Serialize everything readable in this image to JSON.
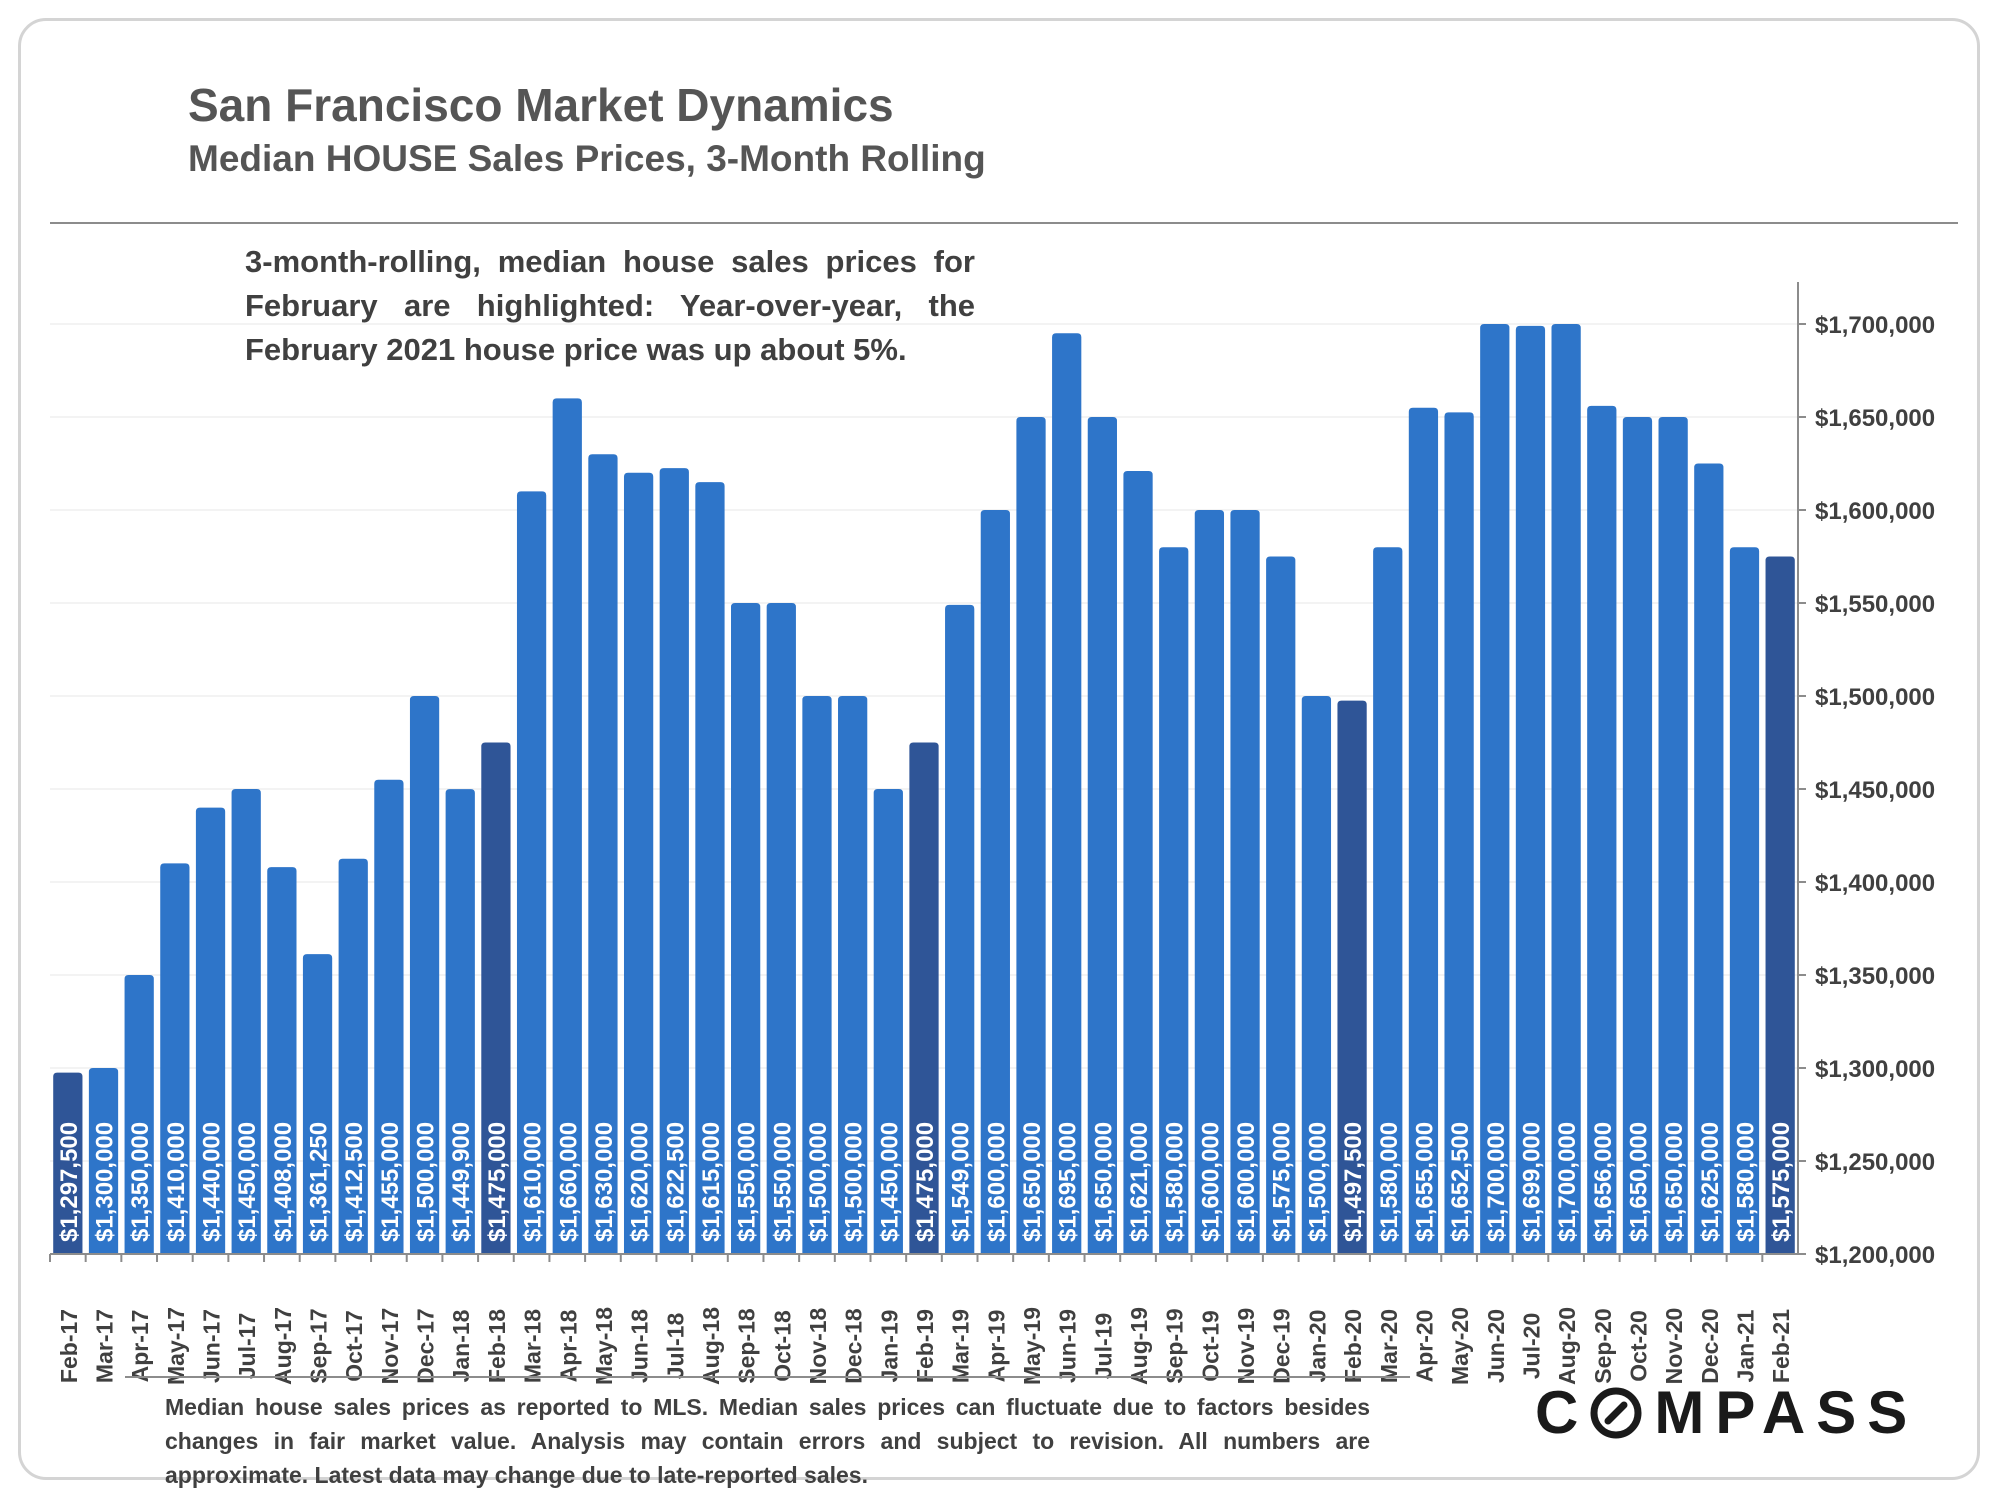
{
  "header": {
    "title": "San Francisco Market Dynamics",
    "subtitle": "Median HOUSE Sales Prices, 3-Month Rolling"
  },
  "annotation": "3-month-rolling, median house sales prices for February are highlighted: Year-over-year, the February 2021 house price was up about 5%.",
  "footnote": "Median house sales prices as reported to MLS. Median sales prices can fluctuate due to factors besides changes in fair market value. Analysis may contain errors and subject to revision. All numbers are approximate. Latest data may change due to late-reported sales.",
  "logo": {
    "text": "COMPASS",
    "letters_before_o": "C",
    "letters_after_o": "MPASS"
  },
  "colors": {
    "bar": "#2e75c9",
    "bar_highlight": "#2f5597",
    "label": "#ffffff",
    "axis_text": "#404040"
  },
  "chart_data": {
    "type": "bar",
    "categories": [
      "Feb-17",
      "Mar-17",
      "Apr-17",
      "May-17",
      "Jun-17",
      "Jul-17",
      "Aug-17",
      "Sep-17",
      "Oct-17",
      "Nov-17",
      "Dec-17",
      "Jan-18",
      "Feb-18",
      "Mar-18",
      "Apr-18",
      "May-18",
      "Jun-18",
      "Jul-18",
      "Aug-18",
      "Sep-18",
      "Oct-18",
      "Nov-18",
      "Dec-18",
      "Jan-19",
      "Feb-19",
      "Mar-19",
      "Apr-19",
      "May-19",
      "Jun-19",
      "Jul-19",
      "Aug-19",
      "Sep-19",
      "Oct-19",
      "Nov-19",
      "Dec-19",
      "Jan-20",
      "Feb-20",
      "Mar-20",
      "Apr-20",
      "May-20",
      "Jun-20",
      "Jul-20",
      "Aug-20",
      "Sep-20",
      "Oct-20",
      "Nov-20",
      "Dec-20",
      "Jan-21",
      "Feb-21"
    ],
    "values": [
      1297500,
      1300000,
      1350000,
      1410000,
      1440000,
      1450000,
      1408000,
      1361250,
      1412500,
      1455000,
      1500000,
      1449900,
      1475000,
      1610000,
      1660000,
      1630000,
      1620000,
      1622500,
      1615000,
      1550000,
      1550000,
      1500000,
      1500000,
      1450000,
      1475000,
      1549000,
      1600000,
      1650000,
      1695000,
      1650000,
      1621000,
      1580000,
      1600000,
      1600000,
      1575000,
      1500000,
      1497500,
      1580000,
      1655000,
      1652500,
      1700000,
      1699000,
      1700000,
      1656000,
      1650000,
      1650000,
      1625000,
      1580000,
      1575000
    ],
    "data_labels": [
      "$1,297,500",
      "$1,300,000",
      "$1,350,000",
      "$1,410,000",
      "$1,440,000",
      "$1,450,000",
      "$1,408,000",
      "$1,361,250",
      "$1,412,500",
      "$1,455,000",
      "$1,500,000",
      "$1,449,900",
      "$1,475,000",
      "$1,610,000",
      "$1,660,000",
      "$1,630,000",
      "$1,620,000",
      "$1,622,500",
      "$1,615,000",
      "$1,550,000",
      "$1,550,000",
      "$1,500,000",
      "$1,500,000",
      "$1,450,000",
      "$1,475,000",
      "$1,549,000",
      "$1,600,000",
      "$1,650,000",
      "$1,695,000",
      "$1,650,000",
      "$1,621,000",
      "$1,580,000",
      "$1,600,000",
      "$1,600,000",
      "$1,575,000",
      "$1,500,000",
      "$1,497,500",
      "$1,580,000",
      "$1,655,000",
      "$1,652,500",
      "$1,700,000",
      "$1,699,000",
      "$1,700,000",
      "$1,656,000",
      "$1,650,000",
      "$1,650,000",
      "$1,625,000",
      "$1,580,000",
      "$1,575,000"
    ],
    "highlighted": [
      "Feb-17",
      "Feb-18",
      "Feb-19",
      "Feb-20",
      "Feb-21"
    ],
    "ylim": [
      1200000,
      1720000
    ],
    "yticks": [
      1200000,
      1250000,
      1300000,
      1350000,
      1400000,
      1450000,
      1500000,
      1550000,
      1600000,
      1650000,
      1700000
    ],
    "ytick_labels": [
      "$1,200,000",
      "$1,250,000",
      "$1,300,000",
      "$1,350,000",
      "$1,400,000",
      "$1,450,000",
      "$1,500,000",
      "$1,550,000",
      "$1,600,000",
      "$1,650,000",
      "$1,700,000"
    ],
    "y_axis_side": "right",
    "grid": true,
    "xlabel": "",
    "ylabel": ""
  }
}
